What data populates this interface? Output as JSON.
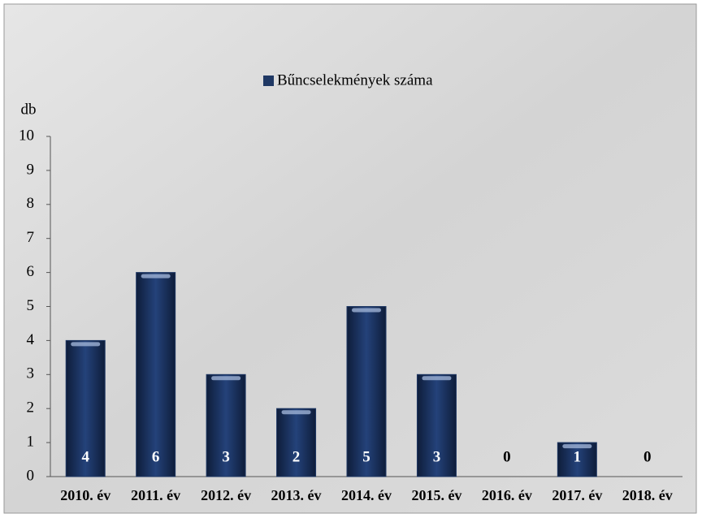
{
  "chart_data": {
    "type": "bar",
    "legend": "Bűncselekmények száma",
    "y_label": "db",
    "categories": [
      "2010. év",
      "2011. év",
      "2012. év",
      "2013. év",
      "2014. év",
      "2015. év",
      "2016. év",
      "2017. év",
      "2018. év"
    ],
    "values": [
      4,
      6,
      3,
      2,
      5,
      3,
      0,
      1,
      0
    ],
    "color": "#1f3864",
    "ylim": [
      0,
      10
    ],
    "yticks": [
      0,
      1,
      2,
      3,
      4,
      5,
      6,
      7,
      8,
      9,
      10
    ],
    "grid": false
  }
}
